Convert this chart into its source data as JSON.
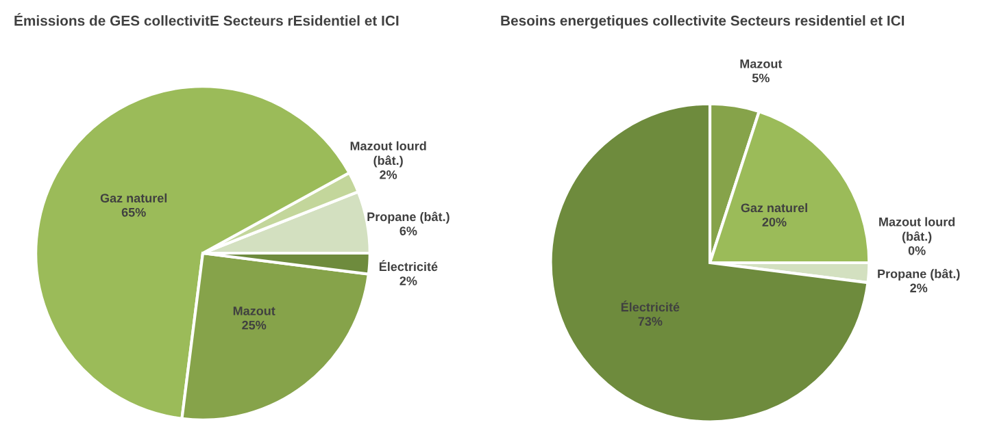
{
  "chart_data": [
    {
      "type": "pie",
      "title": "Émissions de GES collectivitE Secteurs rEsidentiel et ICI",
      "categories": [
        "Propane (bât.)",
        "Mazout lourd (bât.)",
        "Gaz naturel",
        "Mazout",
        "Électricité"
      ],
      "values": [
        6,
        2,
        65,
        25,
        2
      ],
      "colors": [
        "#d3e0c0",
        "#c3d69b",
        "#9bbb59",
        "#86a34a",
        "#6e8b3d"
      ],
      "value_labels": [
        "6%",
        "2%",
        "65%",
        "25%",
        "2%"
      ]
    },
    {
      "type": "pie",
      "title": "Besoins energetiques collectivite Secteurs residentiel et ICI",
      "categories": [
        "Mazout",
        "Gaz naturel",
        "Mazout lourd (bât.)",
        "Propane (bât.)",
        "Électricité"
      ],
      "values": [
        5,
        20,
        0,
        2,
        73
      ],
      "colors": [
        "#86a34a",
        "#9bbb59",
        "#c3d69b",
        "#d3e0c0",
        "#6e8b3d"
      ],
      "value_labels": [
        "5%",
        "20%",
        "0%",
        "2%",
        "73%"
      ]
    }
  ]
}
